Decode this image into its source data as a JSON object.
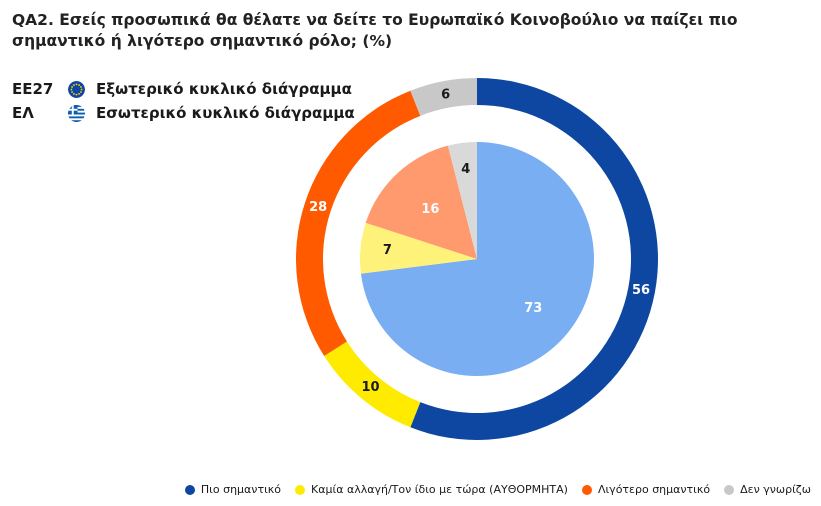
{
  "title": "QA2. Εσείς προσωπικά θα θέλατε να δείτε το Ευρωπαϊκό Κοινοβούλιο να παίζει πιο σημαντικό ή λιγότερο σημαντικό ρόλο; (%)",
  "key": {
    "outer": {
      "code": "EE27",
      "label": "Εξωτερικό κυκλικό διάγραμμα",
      "icon": "eu-flag-icon"
    },
    "inner": {
      "code": "ΕΛ",
      "label": "Εσωτερικό κυκλικό διάγραμμα",
      "icon": "greece-flag-icon"
    }
  },
  "chart_data": {
    "type": "pie",
    "categories": [
      "Πιο σημαντικό",
      "Καμία αλλαγή/Τον ίδιο με τώρα (ΑΥΘΟΡΜΗΤΑ)",
      "Λιγότερο σημαντικό",
      "Δεν γνωρίζω"
    ],
    "series": [
      {
        "name": "EE27",
        "values": [
          56,
          10,
          28,
          6
        ],
        "colors": [
          "#0D47A1",
          "#FFEB00",
          "#FF5A00",
          "#C8C8C8"
        ]
      },
      {
        "name": "ΕΛ",
        "values": [
          73,
          7,
          16,
          4
        ],
        "colors": [
          "#7AAEF2",
          "#FFF27A",
          "#FF9A6E",
          "#D9D9D9"
        ]
      }
    ],
    "legend": {
      "position": "bottom-right",
      "colors": [
        "#0D47A1",
        "#FFEB00",
        "#FF5A00",
        "#C8C8C8"
      ]
    }
  }
}
